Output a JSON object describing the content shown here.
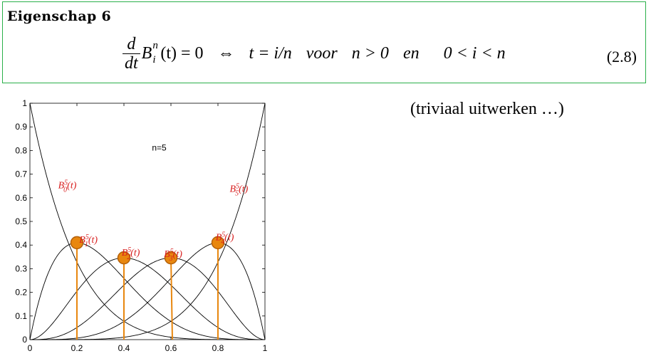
{
  "property": {
    "title": "Eigenschap 6",
    "formula": {
      "frac_num": "d",
      "frac_den": "dt",
      "B": "B",
      "B_sup": "n",
      "B_sub": "i",
      "arg": "(t) = 0",
      "iff": "⇔",
      "cond1": "t = i/n",
      "word1": "voor",
      "cond2": "n > 0",
      "word2": "en",
      "cond3": "0 < i < n"
    },
    "eq_number": "(2.8)"
  },
  "side_note": "(triviaal uitwerken …)",
  "chart_data": {
    "type": "line",
    "n": 5,
    "annotation": "n=5",
    "xlim": [
      0,
      1
    ],
    "ylim": [
      0,
      1
    ],
    "x_ticks": [
      "0",
      "0.2",
      "0.4",
      "0.6",
      "0.8",
      "1"
    ],
    "y_ticks": [
      "0",
      "0.1",
      "0.2",
      "0.3",
      "0.4",
      "0.5",
      "0.6",
      "0.7",
      "0.8",
      "0.9",
      "1"
    ],
    "series": [
      {
        "name": "B_0^5(t)",
        "i": 0
      },
      {
        "name": "B_1^5(t)",
        "i": 1
      },
      {
        "name": "B_2^5(t)",
        "i": 2
      },
      {
        "name": "B_3^5(t)",
        "i": 3
      },
      {
        "name": "B_4^5(t)",
        "i": 4
      },
      {
        "name": "B_5^5(t)",
        "i": 5
      }
    ],
    "maxima": [
      {
        "t": 0.2,
        "value": 0.41
      },
      {
        "t": 0.4,
        "value": 0.346
      },
      {
        "t": 0.6,
        "value": 0.346
      },
      {
        "t": 0.8,
        "value": 0.41
      }
    ],
    "curve_color": "#000000",
    "label_color": "#d81e1e",
    "marker_color": "#e8870f",
    "marker_stroke": "#b3600a"
  }
}
